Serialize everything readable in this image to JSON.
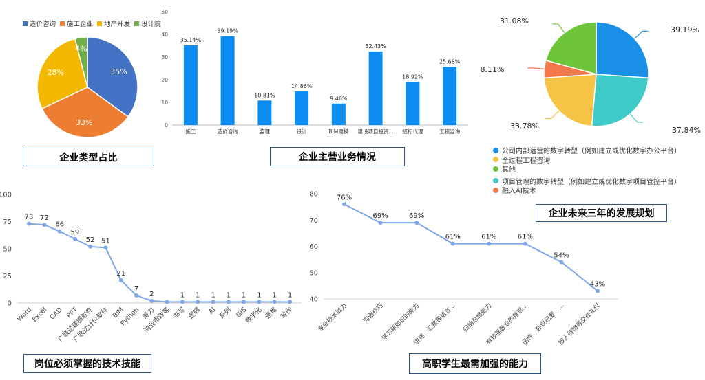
{
  "captions": {
    "type_share": "企业类型占比",
    "main_business": "企业主营业务情况",
    "future_plan": "企业未来三年的发展规划",
    "tech_skills": "岗位必须掌握的技术技能",
    "abilities": "高职学生最需加强的能力"
  },
  "chart_data": [
    {
      "id": "type_share",
      "type": "pie",
      "title": "企业类型占比",
      "legend_position": "top",
      "slices": [
        {
          "label": "造价咨询",
          "value": 35,
          "display": "35%",
          "color": "#4472c4"
        },
        {
          "label": "施工企业",
          "value": 33,
          "display": "33%",
          "color": "#ed7d31"
        },
        {
          "label": "地产开发",
          "value": 28,
          "display": "28%",
          "color": "#f5b800"
        },
        {
          "label": "设计院",
          "value": 4,
          "display": "4%",
          "color": "#70ad47"
        }
      ]
    },
    {
      "id": "main_business",
      "type": "bar",
      "title": "企业主营业务情况",
      "categories": [
        "施工",
        "造价咨询",
        "监理",
        "设计",
        "BIM建模",
        "建设项目投资...",
        "招标代理",
        "工程咨询"
      ],
      "values": [
        35.14,
        39.19,
        10.81,
        14.86,
        9.46,
        32.43,
        18.92,
        25.68
      ],
      "labels": [
        "35.14%",
        "39.19%",
        "10.81%",
        "14.86%",
        "9.46%",
        "32.43%",
        "18.92%",
        "25.68%"
      ],
      "ylim": [
        0,
        50
      ],
      "yticks": [
        "0",
        "10",
        "20",
        "30",
        "40",
        "50"
      ],
      "color": "#0a8cf0",
      "grid": false
    },
    {
      "id": "future_plan",
      "type": "pie",
      "title": "企业未来三年的发展规划",
      "legend_position": "bottom",
      "slices": [
        {
          "label": "公司内部运营的数字转型（例如建立或优化数字办公平台）",
          "value": 39.19,
          "display": "39.19%",
          "color": "#1a8fe8"
        },
        {
          "label": "项目管理的数字转型（例如建立或优化数字项目管控平台）",
          "value": 37.84,
          "display": "37.84%",
          "color": "#3ecac6"
        },
        {
          "label": "全过程工程咨询",
          "value": 33.78,
          "display": "33.78%",
          "color": "#f7c344"
        },
        {
          "label": "融入AI技术",
          "value": 8.11,
          "display": "8.11%",
          "color": "#f0784a"
        },
        {
          "label": "其他",
          "value": 31.08,
          "display": "31.08%",
          "color": "#6cc53b"
        }
      ],
      "legend_order": [
        "公司内部运营的数字转型（例如建立或优化数字办公平台）",
        "全过程工程咨询",
        "其他",
        "项目管理的数字转型（例如建立或优化数字项目管控平台）",
        "融入AI技术"
      ]
    },
    {
      "id": "tech_skills",
      "type": "line",
      "title": "岗位必须掌握的技术技能",
      "categories": [
        "Word",
        "Excel",
        "CAD",
        "PPT",
        "广联达建模软件",
        "广联达计价软件",
        "BIM",
        "Python",
        "能力",
        "鸿业市政等",
        "书写",
        "逻辑",
        "AI",
        "系列",
        "GIS",
        "数字化",
        "思维",
        "写作"
      ],
      "values": [
        73,
        72,
        66,
        59,
        52,
        51,
        21,
        7,
        2,
        1,
        1,
        1,
        1,
        1,
        1,
        1,
        1,
        1
      ],
      "labels": [
        "73",
        "72",
        "66",
        "59",
        "52",
        "51",
        "21",
        "7",
        "2",
        "",
        "1",
        "1",
        "1",
        "1",
        "1",
        "1",
        "1",
        "1"
      ],
      "ylim": [
        0,
        100
      ],
      "yticks": [
        "0",
        "25",
        "50",
        "75",
        "100"
      ],
      "color": "#7da7e8",
      "grid": false
    },
    {
      "id": "abilities",
      "type": "line",
      "title": "高职学生最需加强的能力",
      "categories": [
        "专业技术能力",
        "沟通技巧",
        "学习新知识的能力",
        "讲述、汇报等语言...",
        "归纳总结能力",
        "有较强敬业的意识...",
        "函件、会议纪要、...",
        "接人待物等交往礼仪"
      ],
      "values": [
        76,
        69,
        69,
        61,
        61,
        61,
        54,
        43
      ],
      "labels": [
        "76%",
        "69%",
        "69%",
        "61%",
        "61%",
        "61%",
        "54%",
        "43%"
      ],
      "ylim": [
        40,
        80
      ],
      "yticks": [
        "40",
        "50",
        "60",
        "70",
        "80"
      ],
      "color": "#7da7e8",
      "grid": false
    }
  ]
}
